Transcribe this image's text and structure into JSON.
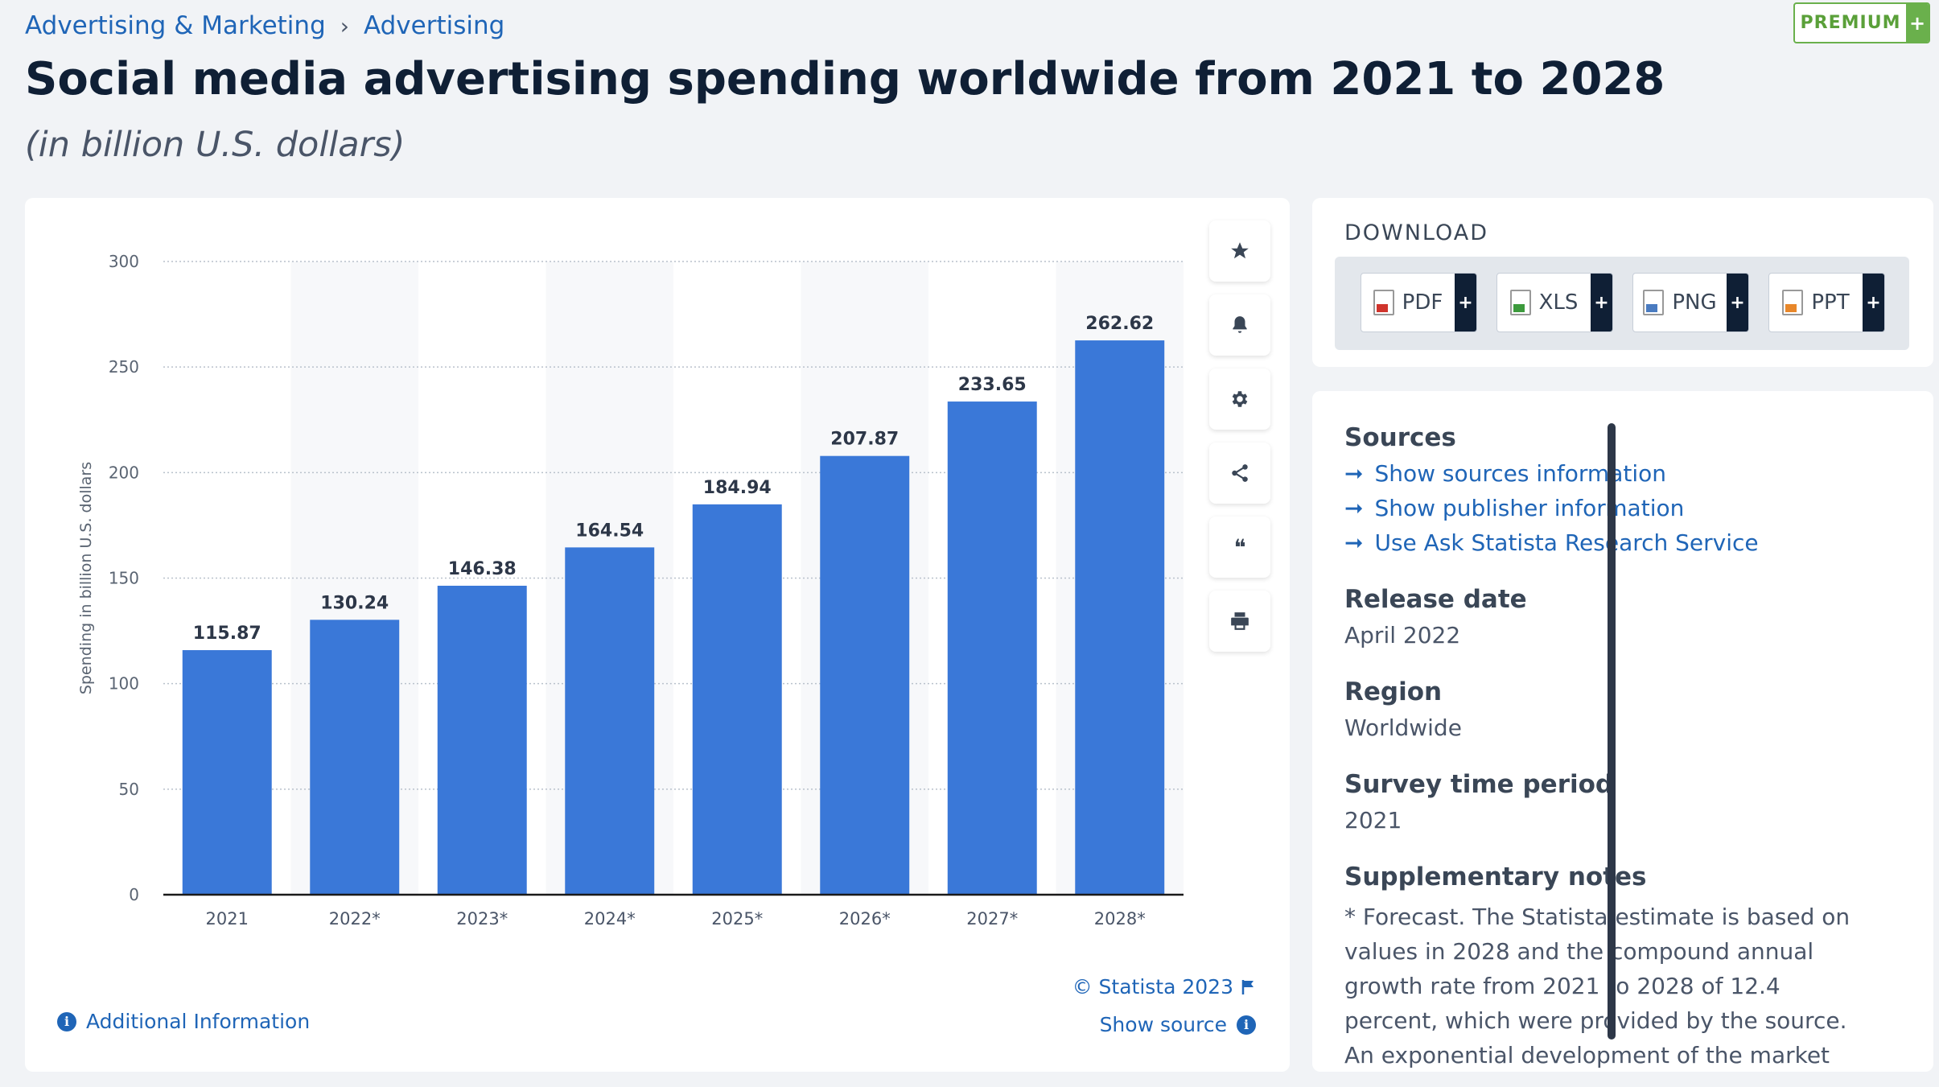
{
  "breadcrumb": {
    "item1": "Advertising & Marketing",
    "separator": "›",
    "item2": "Advertising"
  },
  "premium": {
    "label": "PREMIUM",
    "plus": "+"
  },
  "page_title": "Social media advertising spending worldwide from 2021 to 2028",
  "page_subtitle": "(in billion U.S. dollars)",
  "chart_data": {
    "type": "bar",
    "categories": [
      "2021",
      "2022*",
      "2023*",
      "2024*",
      "2025*",
      "2026*",
      "2027*",
      "2028*"
    ],
    "values": [
      115.87,
      130.24,
      146.38,
      164.54,
      184.94,
      207.87,
      233.65,
      262.62
    ],
    "value_labels": [
      "115.87",
      "130.24",
      "146.38",
      "164.54",
      "184.94",
      "207.87",
      "233.65",
      "262.62"
    ],
    "ylabel": "Spending in billion U.S. dollars",
    "xlabel": "",
    "ylim": [
      0,
      300
    ],
    "yticks": [
      0,
      50,
      100,
      150,
      200,
      250,
      300
    ],
    "ytick_labels": [
      "0",
      "50",
      "100",
      "150",
      "200",
      "250",
      "300"
    ],
    "grid": true,
    "bar_color": "#3a78d8",
    "stripe_color": "#f7f8fa"
  },
  "toolbar": {
    "icons": [
      "star-icon",
      "bell-icon",
      "gear-icon",
      "share-icon",
      "quote-icon",
      "print-icon"
    ],
    "quote_glyph": "❝"
  },
  "chart_footer": {
    "copyright": "© Statista 2023",
    "show_source": "Show source",
    "additional_info": "Additional Information",
    "info_glyph": "i"
  },
  "download": {
    "title": "DOWNLOAD",
    "buttons": [
      {
        "label": "PDF",
        "plus": "+",
        "icon": "pdf-file-icon",
        "color": "#d0342c"
      },
      {
        "label": "XLS",
        "plus": "+",
        "icon": "xls-file-icon",
        "color": "#3c9a3c"
      },
      {
        "label": "PNG",
        "plus": "+",
        "icon": "png-file-icon",
        "color": "#4a7bc0"
      },
      {
        "label": "PPT",
        "plus": "+",
        "icon": "ppt-file-icon",
        "color": "#e8872a"
      }
    ]
  },
  "info": {
    "sources_heading": "Sources",
    "links": [
      "Show sources information",
      "Show publisher information",
      "Use Ask Statista Research Service"
    ],
    "release_heading": "Release date",
    "release_value": "April 2022",
    "region_heading": "Region",
    "region_value": "Worldwide",
    "survey_heading": "Survey time period",
    "survey_value": "2021",
    "notes_heading": "Supplementary notes",
    "notes_text": "* Forecast. The Statista estimate is based on values in 2028 and the compound annual growth rate from 2021 to 2028 of 12.4 percent, which were provided by the source. An exponential development of the market was assumed."
  }
}
